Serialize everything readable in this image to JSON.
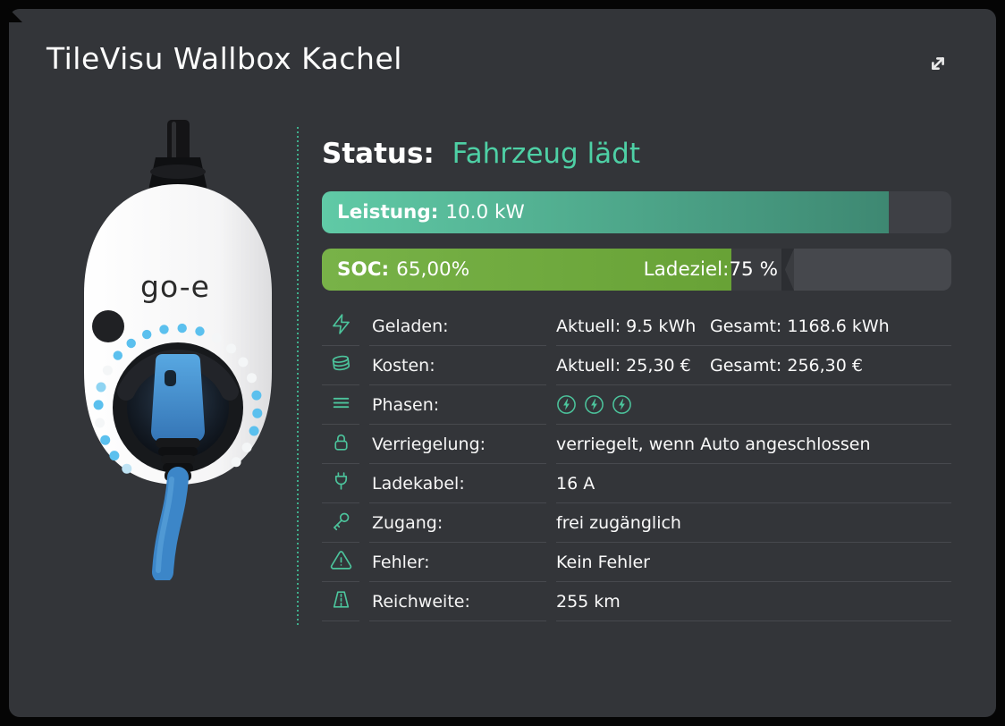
{
  "window": {
    "title": "TileVisu Wallbox Kachel",
    "expand_icon": "expand-diagonal-icon"
  },
  "device": {
    "brand_logo": "go-e"
  },
  "status": {
    "label": "Status:",
    "value": "Fahrzeug lädt"
  },
  "bars": {
    "leistung": {
      "label": "Leistung:",
      "value": "10.0 kW",
      "percent": 90
    },
    "soc": {
      "label": "SOC:",
      "value": "65,00%",
      "percent": 65,
      "ladeziel_label": "Ladeziel:",
      "ladeziel_value": "75 %",
      "ladeziel_percent": 75
    }
  },
  "table": {
    "rows": [
      {
        "icon": "bolt-icon",
        "label": "Geladen:",
        "value_a": "Aktuell: 9.5 kWh",
        "value_b": "Gesamt: 1168.6 kWh"
      },
      {
        "icon": "coins-icon",
        "label": "Kosten:",
        "value_a": "Aktuell: 25,30 €",
        "value_b": "Gesamt: 256,30 €"
      },
      {
        "icon": "phases-icon",
        "label": "Phasen:",
        "phases": 3
      },
      {
        "icon": "lock-icon",
        "label": "Verriegelung:",
        "value": "verriegelt, wenn Auto angeschlossen"
      },
      {
        "icon": "plug-icon",
        "label": "Ladekabel:",
        "value": "16 A"
      },
      {
        "icon": "key-icon",
        "label": "Zugang:",
        "value": "frei zugänglich"
      },
      {
        "icon": "warning-icon",
        "label": "Fehler:",
        "value": "Kein Fehler"
      },
      {
        "icon": "road-icon",
        "label": "Reichweite:",
        "value": "255 km"
      }
    ]
  },
  "colors": {
    "accent_teal": "#4ecca3",
    "status_teal": "#4ed0a5",
    "soc_green": "#6fa93c",
    "leistung_teal_light": "#60caa6",
    "leistung_teal_dark": "#3e8872",
    "card_bg": "#333539",
    "plug_blue": "#3c86c8"
  }
}
